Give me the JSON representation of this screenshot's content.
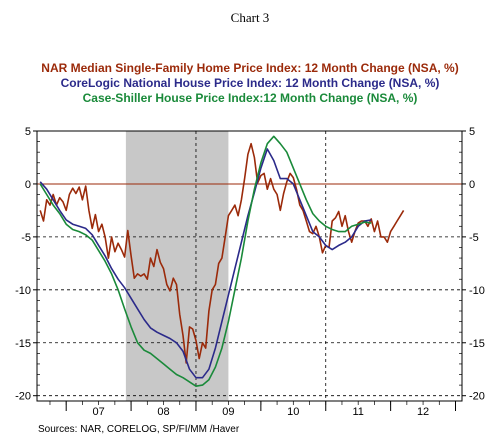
{
  "chart_data": {
    "type": "line",
    "chart_label": "Chart 3",
    "titles": [
      {
        "text": "NAR Median Single-Family Home Price Index:  12 Month Change (NSA, %)",
        "color": "#9b2a0a"
      },
      {
        "text": "CoreLogic National House Price Index: 12 Month Change (NSA, %)",
        "color": "#2b2a8a"
      },
      {
        "text": "Case-Shiller House Price Index:12 Month Change (NSA, %)",
        "color": "#1a8a3a"
      }
    ],
    "source": "Sources:  NAR, CORELOG, SP/FI/MM /Haver",
    "x_tick_labels": [
      "07",
      "08",
      "09",
      "10",
      "11",
      "12"
    ],
    "y_ticks": [
      5,
      0,
      -5,
      -10,
      -15,
      -20
    ],
    "y_tick_labels": [
      "5",
      "0",
      "-5",
      "-10",
      "-15",
      "-20"
    ],
    "ylim": [
      -20.5,
      5
    ],
    "xlim": [
      2006.55,
      2013.1
    ],
    "recession_band": [
      2007.92,
      2009.5
    ],
    "zero_line_color": "#9b2a0a",
    "grid": "vertical and horizontal dashed",
    "series": [
      {
        "name": "NAR Median Single-Family Home Price Index",
        "color": "#9b2a0a",
        "x": [
          2006.6,
          2006.65,
          2006.7,
          2006.75,
          2006.8,
          2006.85,
          2006.9,
          2006.95,
          2007.0,
          2007.05,
          2007.1,
          2007.15,
          2007.2,
          2007.25,
          2007.3,
          2007.35,
          2007.4,
          2007.45,
          2007.5,
          2007.55,
          2007.6,
          2007.65,
          2007.7,
          2007.75,
          2007.8,
          2007.85,
          2007.9,
          2007.95,
          2008.0,
          2008.05,
          2008.1,
          2008.15,
          2008.2,
          2008.25,
          2008.3,
          2008.35,
          2008.4,
          2008.45,
          2008.5,
          2008.55,
          2008.6,
          2008.65,
          2008.7,
          2008.75,
          2008.8,
          2008.85,
          2008.9,
          2008.95,
          2009.0,
          2009.05,
          2009.1,
          2009.15,
          2009.2,
          2009.25,
          2009.3,
          2009.35,
          2009.4,
          2009.45,
          2009.5,
          2009.55,
          2009.6,
          2009.65,
          2009.7,
          2009.75,
          2009.8,
          2009.85,
          2009.9,
          2009.95,
          2010.0,
          2010.05,
          2010.1,
          2010.15,
          2010.2,
          2010.25,
          2010.3,
          2010.35,
          2010.4,
          2010.45,
          2010.5,
          2010.55,
          2010.6,
          2010.65,
          2010.7,
          2010.75,
          2010.8,
          2010.85,
          2010.9,
          2010.95,
          2011.0,
          2011.05,
          2011.1,
          2011.15,
          2011.2,
          2011.25,
          2011.3,
          2011.35,
          2011.4,
          2011.45,
          2011.5,
          2011.55,
          2011.6,
          2011.65,
          2011.7,
          2011.75,
          2011.8,
          2011.85,
          2011.9,
          2011.95,
          2012.0,
          2012.05,
          2012.1,
          2012.15,
          2012.2
        ],
        "values": [
          -2.5,
          -3.5,
          -1.5,
          -2.0,
          -1.0,
          -2.0,
          -1.3,
          -1.7,
          -2.5,
          -1.0,
          -0.4,
          -0.9,
          -0.3,
          -1.5,
          -0.2,
          -2.5,
          -4.2,
          -2.9,
          -4.5,
          -3.8,
          -5.0,
          -7.0,
          -5.0,
          -6.4,
          -5.6,
          -6.2,
          -6.9,
          -4.4,
          -6.8,
          -8.9,
          -8.5,
          -8.7,
          -8.5,
          -9.0,
          -7.0,
          -7.8,
          -6.2,
          -7.4,
          -8.0,
          -9.5,
          -10.1,
          -8.9,
          -9.5,
          -12.3,
          -14.3,
          -16.9,
          -13.5,
          -13.7,
          -14.8,
          -16.5,
          -15.0,
          -15.5,
          -12.0,
          -10.0,
          -9.5,
          -7.5,
          -7.0,
          -5.0,
          -3.0,
          -2.5,
          -2.0,
          -3.0,
          -1.5,
          0.5,
          2.8,
          3.8,
          2.5,
          0.1,
          0.8,
          1.0,
          -0.5,
          0.5,
          -0.5,
          -1.0,
          -2.5,
          -0.9,
          0.2,
          1.0,
          0.6,
          -0.5,
          -2.0,
          -2.5,
          -3.5,
          -4.5,
          -4.7,
          -4.0,
          -5.0,
          -6.5,
          -5.8,
          -6.0,
          -3.5,
          -3.2,
          -2.6,
          -4.0,
          -3.0,
          -4.5,
          -5.5,
          -4.5,
          -3.7,
          -3.5,
          -3.5,
          -4.0,
          -3.3,
          -4.5,
          -3.5,
          -5.0,
          -5.0,
          -5.5,
          -4.5,
          -4.0,
          -3.5,
          -3.0,
          -2.5
        ]
      },
      {
        "name": "CoreLogic National House Price Index",
        "color": "#2b2a8a",
        "x": [
          2006.6,
          2006.7,
          2006.8,
          2006.9,
          2007.0,
          2007.1,
          2007.2,
          2007.3,
          2007.4,
          2007.5,
          2007.6,
          2007.7,
          2007.8,
          2007.9,
          2008.0,
          2008.1,
          2008.2,
          2008.3,
          2008.4,
          2008.5,
          2008.6,
          2008.7,
          2008.8,
          2008.9,
          2009.0,
          2009.1,
          2009.2,
          2009.3,
          2009.4,
          2009.5,
          2009.6,
          2009.7,
          2009.8,
          2009.9,
          2010.0,
          2010.1,
          2010.2,
          2010.3,
          2010.4,
          2010.5,
          2010.6,
          2010.7,
          2010.8,
          2010.9,
          2011.0,
          2011.1,
          2011.2,
          2011.3,
          2011.4,
          2011.5,
          2011.6,
          2011.7
        ],
        "values": [
          0.2,
          -0.5,
          -1.5,
          -2.5,
          -3.4,
          -3.8,
          -4.0,
          -4.2,
          -4.8,
          -5.8,
          -6.8,
          -8.0,
          -9.0,
          -9.8,
          -10.8,
          -11.8,
          -12.8,
          -13.6,
          -14.0,
          -14.3,
          -14.6,
          -15.0,
          -15.8,
          -17.5,
          -18.3,
          -18.3,
          -17.5,
          -15.5,
          -13.0,
          -10.5,
          -8.0,
          -5.5,
          -3.0,
          -0.8,
          1.5,
          3.3,
          2.2,
          0.5,
          0.5,
          0.0,
          -1.5,
          -3.0,
          -4.5,
          -5.0,
          -5.8,
          -6.2,
          -5.8,
          -5.5,
          -5.0,
          -4.0,
          -3.5,
          -3.4
        ]
      },
      {
        "name": "Case-Shiller House Price Index",
        "color": "#1a8a3a",
        "x": [
          2006.6,
          2006.7,
          2006.8,
          2006.9,
          2007.0,
          2007.1,
          2007.2,
          2007.3,
          2007.4,
          2007.5,
          2007.6,
          2007.7,
          2007.8,
          2007.9,
          2008.0,
          2008.1,
          2008.2,
          2008.3,
          2008.4,
          2008.5,
          2008.6,
          2008.7,
          2008.8,
          2008.9,
          2009.0,
          2009.1,
          2009.2,
          2009.3,
          2009.4,
          2009.5,
          2009.6,
          2009.7,
          2009.8,
          2009.9,
          2010.0,
          2010.1,
          2010.2,
          2010.3,
          2010.4,
          2010.5,
          2010.6,
          2010.7,
          2010.8,
          2010.9,
          2011.0,
          2011.1,
          2011.2,
          2011.3,
          2011.4,
          2011.5,
          2011.6,
          2011.7
        ],
        "values": [
          0.0,
          -1.0,
          -2.0,
          -2.8,
          -3.8,
          -4.3,
          -4.5,
          -4.8,
          -5.3,
          -6.3,
          -7.3,
          -8.5,
          -10.0,
          -11.8,
          -13.5,
          -15.0,
          -15.7,
          -16.0,
          -16.5,
          -17.0,
          -17.5,
          -18.0,
          -18.3,
          -18.7,
          -19.1,
          -19.0,
          -18.5,
          -17.3,
          -15.5,
          -13.0,
          -10.0,
          -7.0,
          -3.5,
          -0.5,
          2.0,
          3.8,
          4.5,
          3.8,
          3.0,
          1.5,
          0.0,
          -1.5,
          -2.8,
          -3.5,
          -4.0,
          -4.3,
          -4.5,
          -4.5,
          -4.0,
          -3.8,
          -3.6,
          -3.7
        ]
      }
    ]
  }
}
